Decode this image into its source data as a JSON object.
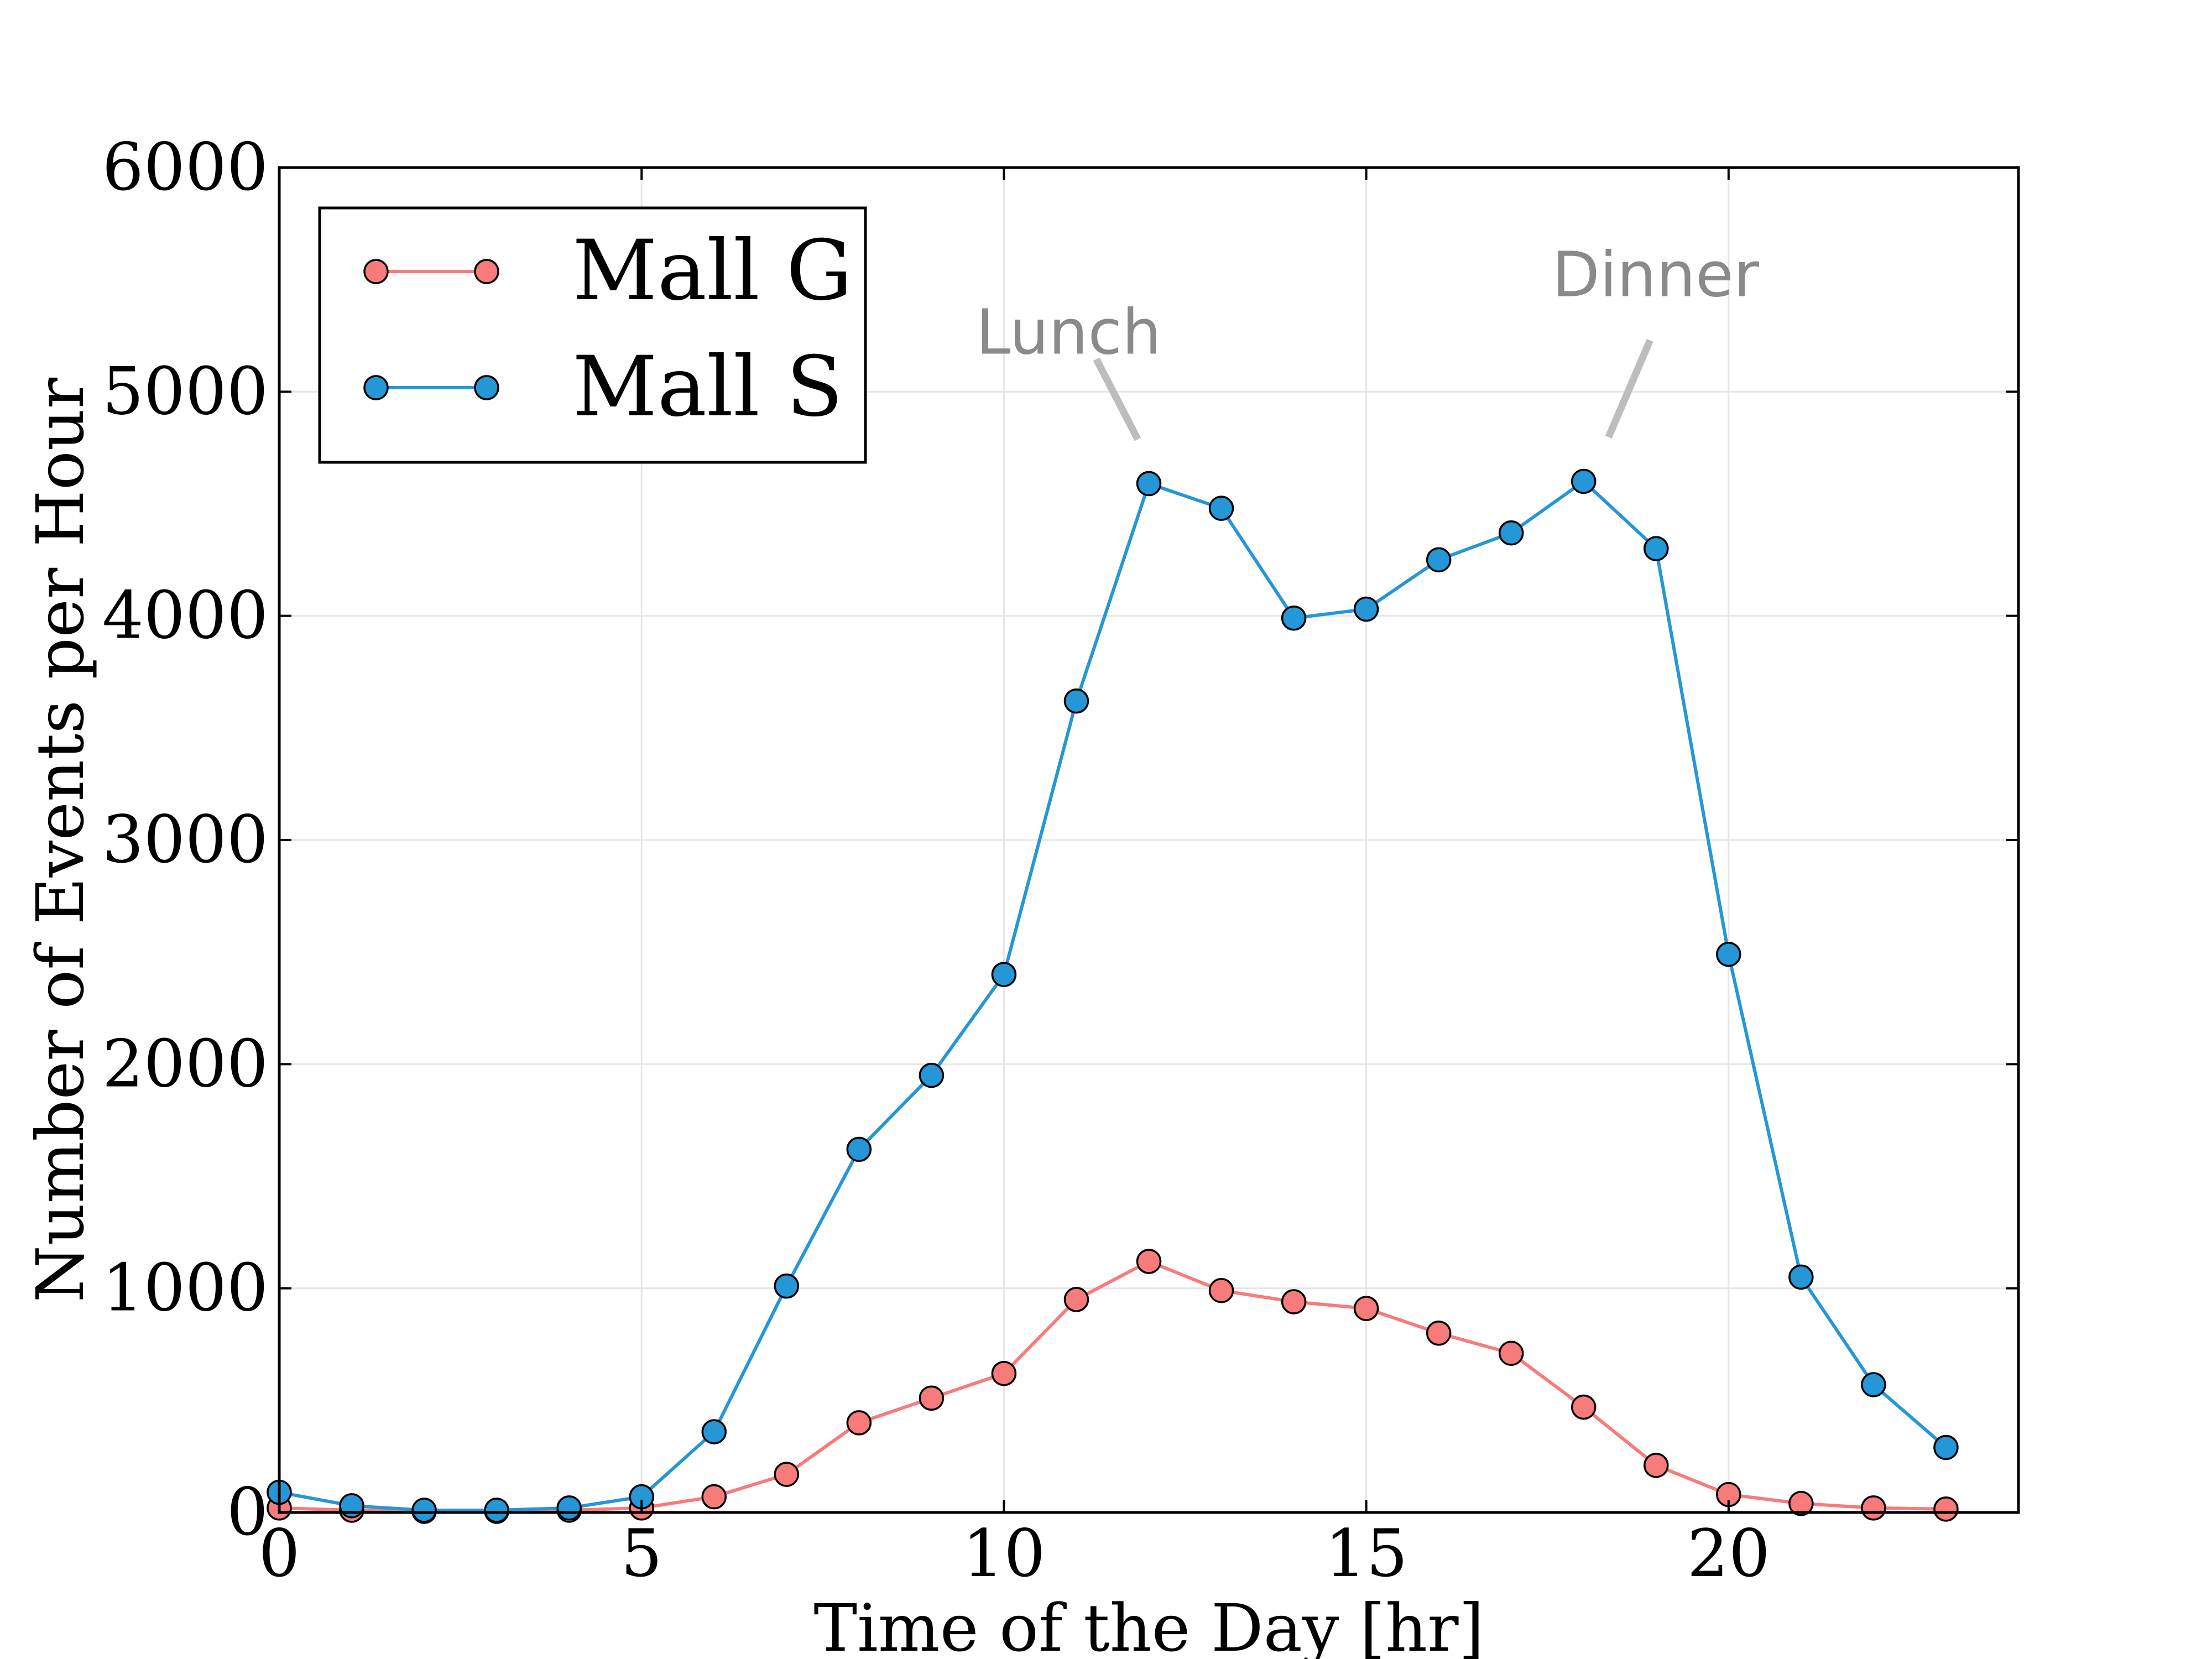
{
  "chart_data": {
    "type": "line",
    "xlabel": "Time of the Day [hr]",
    "ylabel": "Number of Events per Hour",
    "xlim": [
      0,
      24
    ],
    "ylim": [
      0,
      6000
    ],
    "x_ticks": [
      0,
      5,
      10,
      15,
      20
    ],
    "y_ticks": [
      0,
      1000,
      2000,
      3000,
      4000,
      5000,
      6000
    ],
    "grid": true,
    "legend_position": "top-left",
    "x": [
      0,
      1,
      2,
      3,
      4,
      5,
      6,
      7,
      8,
      9,
      10,
      11,
      12,
      13,
      14,
      15,
      16,
      17,
      18,
      19,
      20,
      21,
      22,
      23
    ],
    "series": [
      {
        "name": "Mall G",
        "color": "#f77b7b",
        "values": [
          20,
          10,
          5,
          5,
          10,
          20,
          70,
          170,
          400,
          510,
          620,
          950,
          1120,
          990,
          940,
          910,
          800,
          710,
          470,
          210,
          80,
          40,
          20,
          15
        ]
      },
      {
        "name": "Mall S",
        "color": "#2596d6",
        "values": [
          90,
          30,
          10,
          10,
          20,
          70,
          360,
          1010,
          1620,
          1950,
          2400,
          3620,
          4590,
          4480,
          3990,
          4030,
          4250,
          4370,
          4600,
          4300,
          2490,
          1050,
          570,
          290
        ]
      }
    ],
    "annotations": [
      {
        "text": "Lunch",
        "x": 12,
        "y": 4590
      },
      {
        "text": "Dinner",
        "x": 18,
        "y": 4600
      }
    ]
  }
}
